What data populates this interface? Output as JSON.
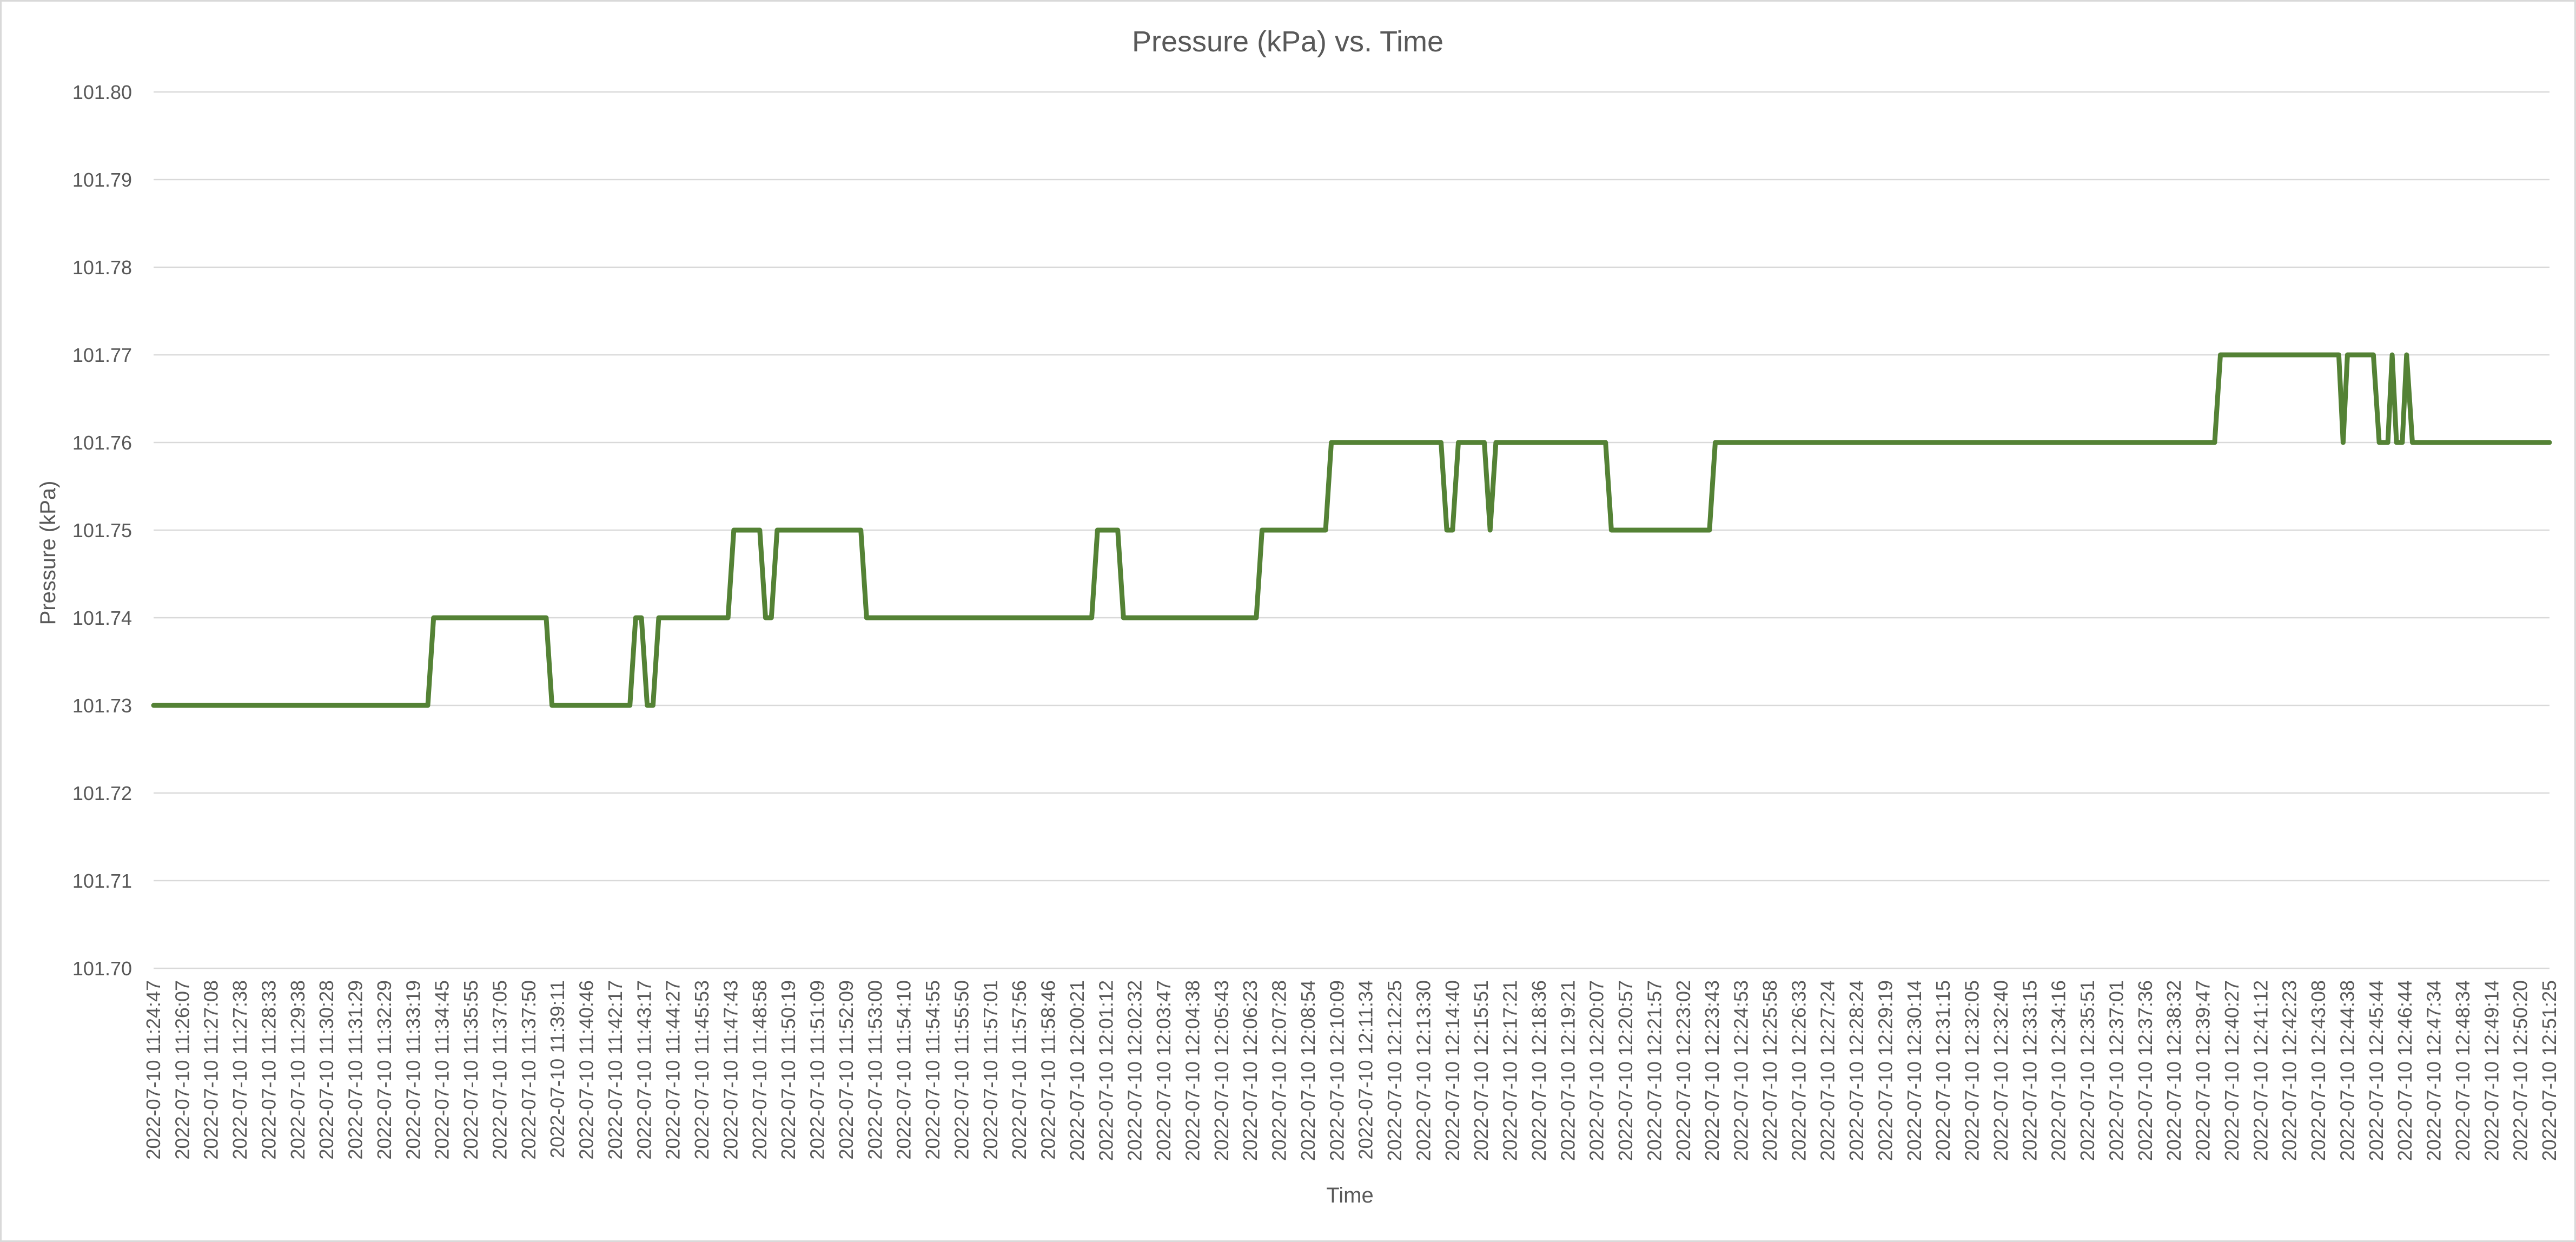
{
  "chart_data": {
    "type": "line",
    "title": "Pressure (kPa) vs. Time",
    "xlabel": "Time",
    "ylabel": "Pressure (kPa)",
    "ylim": [
      101.7,
      101.8
    ],
    "y_ticks": [
      "101.70",
      "101.71",
      "101.72",
      "101.73",
      "101.74",
      "101.75",
      "101.76",
      "101.77",
      "101.78",
      "101.79",
      "101.80"
    ],
    "grid": true,
    "legend": "none",
    "x_tick_labels": [
      "2022-07-10 11:24:47",
      "2022-07-10 11:26:07",
      "2022-07-10 11:27:08",
      "2022-07-10 11:27:38",
      "2022-07-10 11:28:33",
      "2022-07-10 11:29:38",
      "2022-07-10 11:30:28",
      "2022-07-10 11:31:29",
      "2022-07-10 11:32:29",
      "2022-07-10 11:33:19",
      "2022-07-10 11:34:45",
      "2022-07-10 11:35:55",
      "2022-07-10 11:37:05",
      "2022-07-10 11:37:50",
      "2022-07-10 11:39:11",
      "2022-07-10 11:40:46",
      "2022-07-10 11:42:17",
      "2022-07-10 11:43:17",
      "2022-07-10 11:44:27",
      "2022-07-10 11:45:53",
      "2022-07-10 11:47:43",
      "2022-07-10 11:48:58",
      "2022-07-10 11:50:19",
      "2022-07-10 11:51:09",
      "2022-07-10 11:52:09",
      "2022-07-10 11:53:00",
      "2022-07-10 11:54:10",
      "2022-07-10 11:54:55",
      "2022-07-10 11:55:50",
      "2022-07-10 11:57:01",
      "2022-07-10 11:57:56",
      "2022-07-10 11:58:46",
      "2022-07-10 12:00:21",
      "2022-07-10 12:01:12",
      "2022-07-10 12:02:32",
      "2022-07-10 12:03:47",
      "2022-07-10 12:04:38",
      "2022-07-10 12:05:43",
      "2022-07-10 12:06:23",
      "2022-07-10 12:07:28",
      "2022-07-10 12:08:54",
      "2022-07-10 12:10:09",
      "2022-07-10 12:11:34",
      "2022-07-10 12:12:25",
      "2022-07-10 12:13:30",
      "2022-07-10 12:14:40",
      "2022-07-10 12:15:51",
      "2022-07-10 12:17:21",
      "2022-07-10 12:18:36",
      "2022-07-10 12:19:21",
      "2022-07-10 12:20:07",
      "2022-07-10 12:20:57",
      "2022-07-10 12:21:57",
      "2022-07-10 12:23:02",
      "2022-07-10 12:23:43",
      "2022-07-10 12:24:53",
      "2022-07-10 12:25:58",
      "2022-07-10 12:26:33",
      "2022-07-10 12:27:24",
      "2022-07-10 12:28:24",
      "2022-07-10 12:29:19",
      "2022-07-10 12:30:14",
      "2022-07-10 12:31:15",
      "2022-07-10 12:32:05",
      "2022-07-10 12:32:40",
      "2022-07-10 12:33:15",
      "2022-07-10 12:34:16",
      "2022-07-10 12:35:51",
      "2022-07-10 12:37:01",
      "2022-07-10 12:37:36",
      "2022-07-10 12:38:32",
      "2022-07-10 12:39:47",
      "2022-07-10 12:40:27",
      "2022-07-10 12:41:12",
      "2022-07-10 12:42:23",
      "2022-07-10 12:43:08",
      "2022-07-10 12:44:38",
      "2022-07-10 12:45:44",
      "2022-07-10 12:46:44",
      "2022-07-10 12:47:34",
      "2022-07-10 12:48:34",
      "2022-07-10 12:49:14",
      "2022-07-10 12:50:20",
      "2022-07-10 12:51:25"
    ],
    "series": [
      {
        "color": "#548235",
        "points": [
          [
            0,
            101.73
          ],
          [
            9.5,
            101.73
          ],
          [
            9.7,
            101.74
          ],
          [
            13.6,
            101.74
          ],
          [
            13.8,
            101.73
          ],
          [
            16.5,
            101.73
          ],
          [
            16.7,
            101.74
          ],
          [
            16.9,
            101.74
          ],
          [
            17.1,
            101.73
          ],
          [
            17.3,
            101.73
          ],
          [
            17.5,
            101.74
          ],
          [
            19.9,
            101.74
          ],
          [
            20.1,
            101.75
          ],
          [
            21.0,
            101.75
          ],
          [
            21.2,
            101.74
          ],
          [
            21.4,
            101.74
          ],
          [
            21.6,
            101.75
          ],
          [
            24.5,
            101.75
          ],
          [
            24.7,
            101.74
          ],
          [
            32.5,
            101.74
          ],
          [
            32.7,
            101.75
          ],
          [
            33.4,
            101.75
          ],
          [
            33.6,
            101.74
          ],
          [
            38.2,
            101.74
          ],
          [
            38.4,
            101.75
          ],
          [
            40.6,
            101.75
          ],
          [
            40.8,
            101.76
          ],
          [
            44.6,
            101.76
          ],
          [
            44.8,
            101.75
          ],
          [
            45.0,
            101.75
          ],
          [
            45.2,
            101.76
          ],
          [
            46.1,
            101.76
          ],
          [
            46.3,
            101.75
          ],
          [
            46.5,
            101.76
          ],
          [
            50.3,
            101.76
          ],
          [
            50.5,
            101.75
          ],
          [
            53.9,
            101.75
          ],
          [
            54.1,
            101.76
          ],
          [
            71.4,
            101.76
          ],
          [
            71.6,
            101.77
          ],
          [
            75.7,
            101.77
          ],
          [
            75.85,
            101.76
          ],
          [
            76.0,
            101.77
          ],
          [
            76.9,
            101.77
          ],
          [
            77.1,
            101.76
          ],
          [
            77.4,
            101.76
          ],
          [
            77.55,
            101.77
          ],
          [
            77.7,
            101.76
          ],
          [
            77.9,
            101.76
          ],
          [
            78.05,
            101.77
          ],
          [
            78.25,
            101.76
          ],
          [
            83,
            101.76
          ]
        ]
      }
    ]
  }
}
